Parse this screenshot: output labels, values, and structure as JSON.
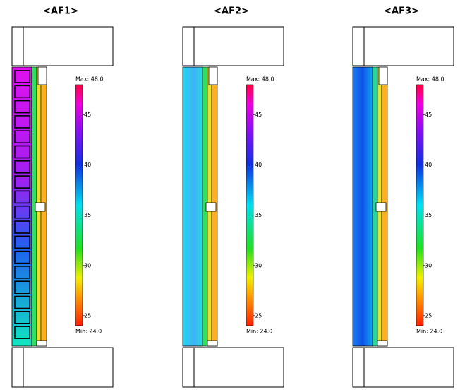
{
  "panels": [
    {
      "title": "<AF1>",
      "colorbar": {
        "max": {
          "value": 48,
          "label": "Max: 48.0"
        },
        "min": {
          "value": 24,
          "label": "Min: 24.0"
        },
        "ticks": [
          45,
          40,
          35,
          30,
          25
        ]
      }
    },
    {
      "title": "<AF2>",
      "colorbar": {
        "max": {
          "value": 48,
          "label": "Max: 48.0"
        },
        "min": {
          "value": 24,
          "label": "Min: 24.0"
        },
        "ticks": [
          45,
          40,
          35,
          30,
          25
        ]
      }
    },
    {
      "title": "<AF3>",
      "colorbar": {
        "max": {
          "value": 48,
          "label": "Max: 48.0"
        },
        "min": {
          "value": 24,
          "label": "Min: 24.0"
        },
        "ticks": [
          45,
          40,
          35,
          30,
          25
        ]
      }
    }
  ]
}
